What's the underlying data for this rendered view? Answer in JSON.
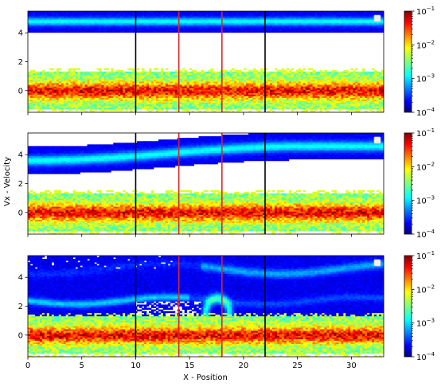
{
  "figure": {
    "xlabel": "X - Position",
    "ylabel": "Vx - Velocity"
  },
  "chart_data": [
    {
      "type": "heatmap",
      "panel": "top",
      "xlim": [
        0,
        33
      ],
      "ylim": [
        -1.5,
        5.5
      ],
      "x_ticks": [
        0,
        5,
        10,
        15,
        20,
        25,
        30
      ],
      "x_tick_labels": [
        "0",
        "5",
        "10",
        "15",
        "20",
        "25",
        "30"
      ],
      "x_tick_labels_shown": false,
      "y_ticks": [
        0,
        2,
        4
      ],
      "y_tick_labels": [
        "0",
        "2",
        "4"
      ],
      "colorscale": "jet",
      "color_norm": "log",
      "color_range": [
        0.0001,
        0.1
      ],
      "colorbar_ticks": [
        "10^-4",
        "10^-3",
        "10^-2",
        "10^-1"
      ],
      "legend_location": "upper right",
      "legend_entries": [],
      "vertical_lines": [
        {
          "x": 10,
          "color": "#000000"
        },
        {
          "x": 14,
          "color": "#d62728"
        },
        {
          "x": 18,
          "color": "#d62728"
        },
        {
          "x": 22,
          "color": "#000000"
        }
      ],
      "populations": [
        {
          "kind": "band",
          "center": 0,
          "width": 1.3,
          "level": "high"
        },
        {
          "kind": "beam",
          "center": 4.8,
          "width": 1.5,
          "level": "low"
        }
      ]
    },
    {
      "type": "heatmap",
      "panel": "middle",
      "xlim": [
        0,
        33
      ],
      "ylim": [
        -1.5,
        5.5
      ],
      "x_ticks": [
        0,
        5,
        10,
        15,
        20,
        25,
        30
      ],
      "x_tick_labels": [
        "0",
        "5",
        "10",
        "15",
        "20",
        "25",
        "30"
      ],
      "x_tick_labels_shown": false,
      "y_ticks": [
        0,
        2,
        4
      ],
      "y_tick_labels": [
        "0",
        "2",
        "4"
      ],
      "colorscale": "jet",
      "color_norm": "log",
      "color_range": [
        0.0001,
        0.1
      ],
      "colorbar_ticks": [
        "10^-4",
        "10^-3",
        "10^-2",
        "10^-1"
      ],
      "legend_location": "upper right",
      "legend_entries": [],
      "vertical_lines": [
        {
          "x": 10,
          "color": "#000000"
        },
        {
          "x": 14,
          "color": "#d62728"
        },
        {
          "x": 18,
          "color": "#d62728"
        },
        {
          "x": 22,
          "color": "#000000"
        }
      ],
      "populations": [
        {
          "kind": "band",
          "center": 0,
          "width": 1.3,
          "level": "high"
        },
        {
          "kind": "beam_rising",
          "center_start": 3.6,
          "center_end": 4.6,
          "width": 1.9,
          "level": "low"
        }
      ]
    },
    {
      "type": "heatmap",
      "panel": "bottom",
      "xlim": [
        0,
        33
      ],
      "ylim": [
        -1.5,
        5.5
      ],
      "x_ticks": [
        0,
        5,
        10,
        15,
        20,
        25,
        30
      ],
      "x_tick_labels": [
        "0",
        "5",
        "10",
        "15",
        "20",
        "25",
        "30"
      ],
      "x_tick_labels_shown": true,
      "y_ticks": [
        0,
        2,
        4
      ],
      "y_tick_labels": [
        "0",
        "2",
        "4"
      ],
      "colorscale": "jet",
      "color_norm": "log",
      "color_range": [
        0.0001,
        0.1
      ],
      "colorbar_ticks": [
        "10^-4",
        "10^-3",
        "10^-2",
        "10^-1"
      ],
      "legend_location": "upper right",
      "legend_entries": [],
      "vertical_lines": [
        {
          "x": 10,
          "color": "#000000"
        },
        {
          "x": 14,
          "color": "#d62728"
        },
        {
          "x": 18,
          "color": "#d62728"
        },
        {
          "x": 22,
          "color": "#000000"
        }
      ],
      "populations": [
        {
          "kind": "band",
          "center": 0,
          "width": 1.3,
          "level": "high"
        },
        {
          "kind": "turbulent",
          "range": [
            0.8,
            5.5
          ],
          "level": "low"
        }
      ]
    }
  ]
}
